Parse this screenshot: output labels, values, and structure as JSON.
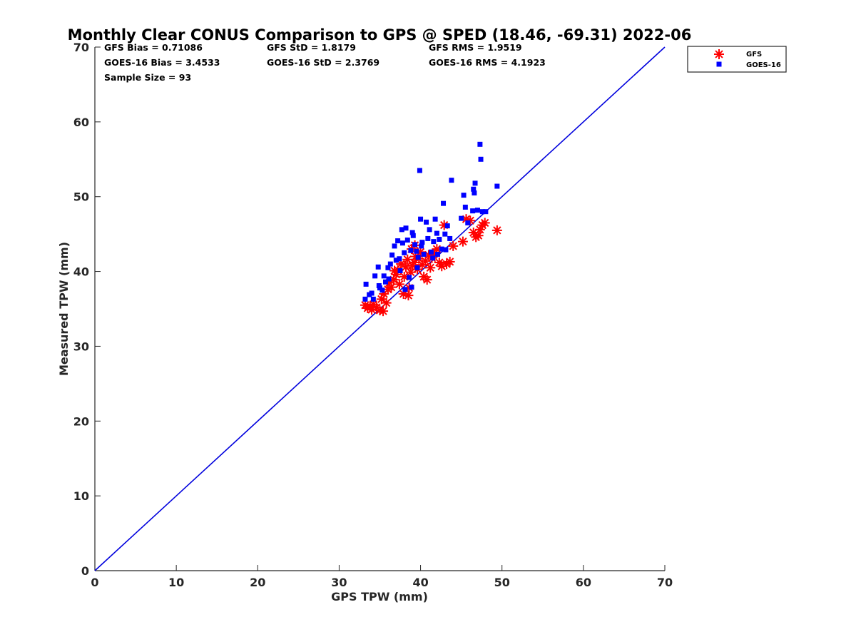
{
  "chart_data": {
    "type": "scatter",
    "title": "Monthly Clear CONUS Comparison to GPS @ SPED (18.46, -69.31) 2022-06",
    "xlabel": "GPS TPW (mm)",
    "ylabel": "Measured TPW (mm)",
    "xlim": [
      0,
      70
    ],
    "ylim": [
      0,
      70
    ],
    "xticks": [
      0,
      10,
      20,
      30,
      40,
      50,
      60,
      70
    ],
    "yticks": [
      0,
      10,
      20,
      30,
      40,
      50,
      60,
      70
    ],
    "grid": false,
    "legend_position": "top-right-outside",
    "reference_line": {
      "x": [
        0,
        70
      ],
      "y": [
        0,
        70
      ],
      "color": "#0000dd"
    },
    "stats": {
      "gfs_bias": "GFS Bias = 0.71086",
      "gfs_std": "GFS StD = 1.8179",
      "gfs_rms": "GFS RMS = 1.9519",
      "goes_bias": "GOES-16 Bias = 3.4533",
      "goes_std": "GOES-16 StD = 2.3769",
      "goes_rms": "GOES-16 RMS = 4.1923",
      "sample_size": "Sample Size = 93"
    },
    "series": [
      {
        "name": "GFS",
        "marker": "asterisk",
        "color": "#ff0000",
        "points": [
          [
            33.2,
            35.5
          ],
          [
            33.5,
            35.1
          ],
          [
            33.8,
            35.3
          ],
          [
            34.0,
            34.9
          ],
          [
            34.2,
            35.6
          ],
          [
            34.6,
            35.2
          ],
          [
            35.0,
            34.8
          ],
          [
            35.2,
            36.3
          ],
          [
            35.5,
            37.0
          ],
          [
            35.8,
            35.8
          ],
          [
            36.0,
            37.6
          ],
          [
            36.2,
            38.5
          ],
          [
            36.4,
            37.9
          ],
          [
            36.7,
            38.9
          ],
          [
            37.0,
            39.6
          ],
          [
            37.2,
            40.2
          ],
          [
            37.4,
            38.3
          ],
          [
            37.6,
            41.0
          ],
          [
            37.9,
            37.0
          ],
          [
            38.0,
            39.3
          ],
          [
            38.2,
            40.6
          ],
          [
            38.4,
            41.6
          ],
          [
            38.5,
            36.8
          ],
          [
            38.6,
            37.8
          ],
          [
            38.8,
            39.9
          ],
          [
            39.0,
            40.8
          ],
          [
            39.2,
            41.2
          ],
          [
            39.4,
            42.0
          ],
          [
            39.6,
            40.3
          ],
          [
            39.8,
            41.7
          ],
          [
            40.0,
            42.6
          ],
          [
            40.2,
            40.9
          ],
          [
            40.4,
            39.3
          ],
          [
            40.6,
            41.4
          ],
          [
            40.8,
            38.9
          ],
          [
            41.0,
            42.2
          ],
          [
            41.2,
            40.5
          ],
          [
            41.4,
            41.8
          ],
          [
            41.7,
            42.4
          ],
          [
            42.0,
            43.0
          ],
          [
            42.3,
            41.2
          ],
          [
            42.6,
            40.7
          ],
          [
            42.9,
            46.2
          ],
          [
            43.2,
            41.0
          ],
          [
            43.6,
            41.3
          ],
          [
            44.0,
            43.4
          ],
          [
            45.2,
            44.0
          ],
          [
            45.6,
            47.0
          ],
          [
            46.1,
            46.8
          ],
          [
            46.5,
            45.2
          ],
          [
            46.8,
            44.6
          ],
          [
            47.1,
            44.8
          ],
          [
            47.3,
            45.6
          ],
          [
            47.6,
            46.2
          ],
          [
            47.9,
            46.5
          ],
          [
            49.4,
            45.5
          ],
          [
            35.4,
            34.7
          ],
          [
            36.8,
            40.1
          ],
          [
            38.9,
            43.0
          ],
          [
            39.3,
            43.5
          ]
        ]
      },
      {
        "name": "GOES-16",
        "marker": "square",
        "color": "#0000ff",
        "points": [
          [
            33.2,
            36.3
          ],
          [
            33.3,
            38.3
          ],
          [
            33.7,
            36.9
          ],
          [
            34.0,
            37.1
          ],
          [
            34.2,
            36.3
          ],
          [
            34.4,
            39.4
          ],
          [
            34.8,
            40.6
          ],
          [
            35.0,
            37.8
          ],
          [
            35.3,
            37.5
          ],
          [
            35.5,
            39.4
          ],
          [
            35.7,
            38.6
          ],
          [
            36.0,
            40.5
          ],
          [
            36.3,
            41.0
          ],
          [
            36.5,
            42.2
          ],
          [
            36.8,
            43.4
          ],
          [
            37.0,
            41.5
          ],
          [
            37.2,
            44.1
          ],
          [
            37.5,
            40.1
          ],
          [
            37.7,
            45.6
          ],
          [
            38.0,
            42.5
          ],
          [
            38.2,
            45.8
          ],
          [
            38.4,
            44.2
          ],
          [
            38.6,
            39.2
          ],
          [
            38.8,
            42.8
          ],
          [
            39.0,
            45.2
          ],
          [
            39.3,
            43.6
          ],
          [
            39.5,
            42.7
          ],
          [
            39.7,
            41.9
          ],
          [
            39.9,
            53.5
          ],
          [
            40.0,
            47.0
          ],
          [
            40.2,
            43.9
          ],
          [
            40.4,
            42.3
          ],
          [
            40.7,
            46.6
          ],
          [
            40.9,
            44.4
          ],
          [
            41.1,
            45.6
          ],
          [
            41.3,
            42.6
          ],
          [
            41.6,
            44.0
          ],
          [
            41.8,
            47.0
          ],
          [
            42.0,
            45.1
          ],
          [
            42.3,
            44.3
          ],
          [
            42.6,
            43.0
          ],
          [
            42.8,
            49.1
          ],
          [
            43.0,
            45.0
          ],
          [
            43.3,
            46.1
          ],
          [
            43.6,
            44.4
          ],
          [
            43.8,
            52.2
          ],
          [
            45.0,
            47.1
          ],
          [
            45.3,
            50.2
          ],
          [
            45.5,
            48.6
          ],
          [
            45.8,
            46.5
          ],
          [
            46.4,
            48.1
          ],
          [
            46.5,
            51.0
          ],
          [
            46.6,
            50.5
          ],
          [
            46.7,
            51.8
          ],
          [
            47.0,
            48.2
          ],
          [
            47.3,
            57.0
          ],
          [
            47.4,
            55.0
          ],
          [
            47.6,
            48.0
          ],
          [
            48.0,
            48.0
          ],
          [
            49.4,
            51.4
          ],
          [
            38.1,
            37.6
          ],
          [
            38.9,
            37.9
          ],
          [
            37.4,
            41.7
          ],
          [
            39.6,
            40.5
          ],
          [
            36.1,
            39.0
          ],
          [
            34.9,
            38.1
          ],
          [
            40.1,
            43.4
          ],
          [
            43.1,
            42.9
          ],
          [
            41.5,
            41.8
          ],
          [
            39.1,
            44.8
          ],
          [
            37.8,
            43.8
          ],
          [
            42.1,
            42.3
          ]
        ]
      }
    ]
  }
}
